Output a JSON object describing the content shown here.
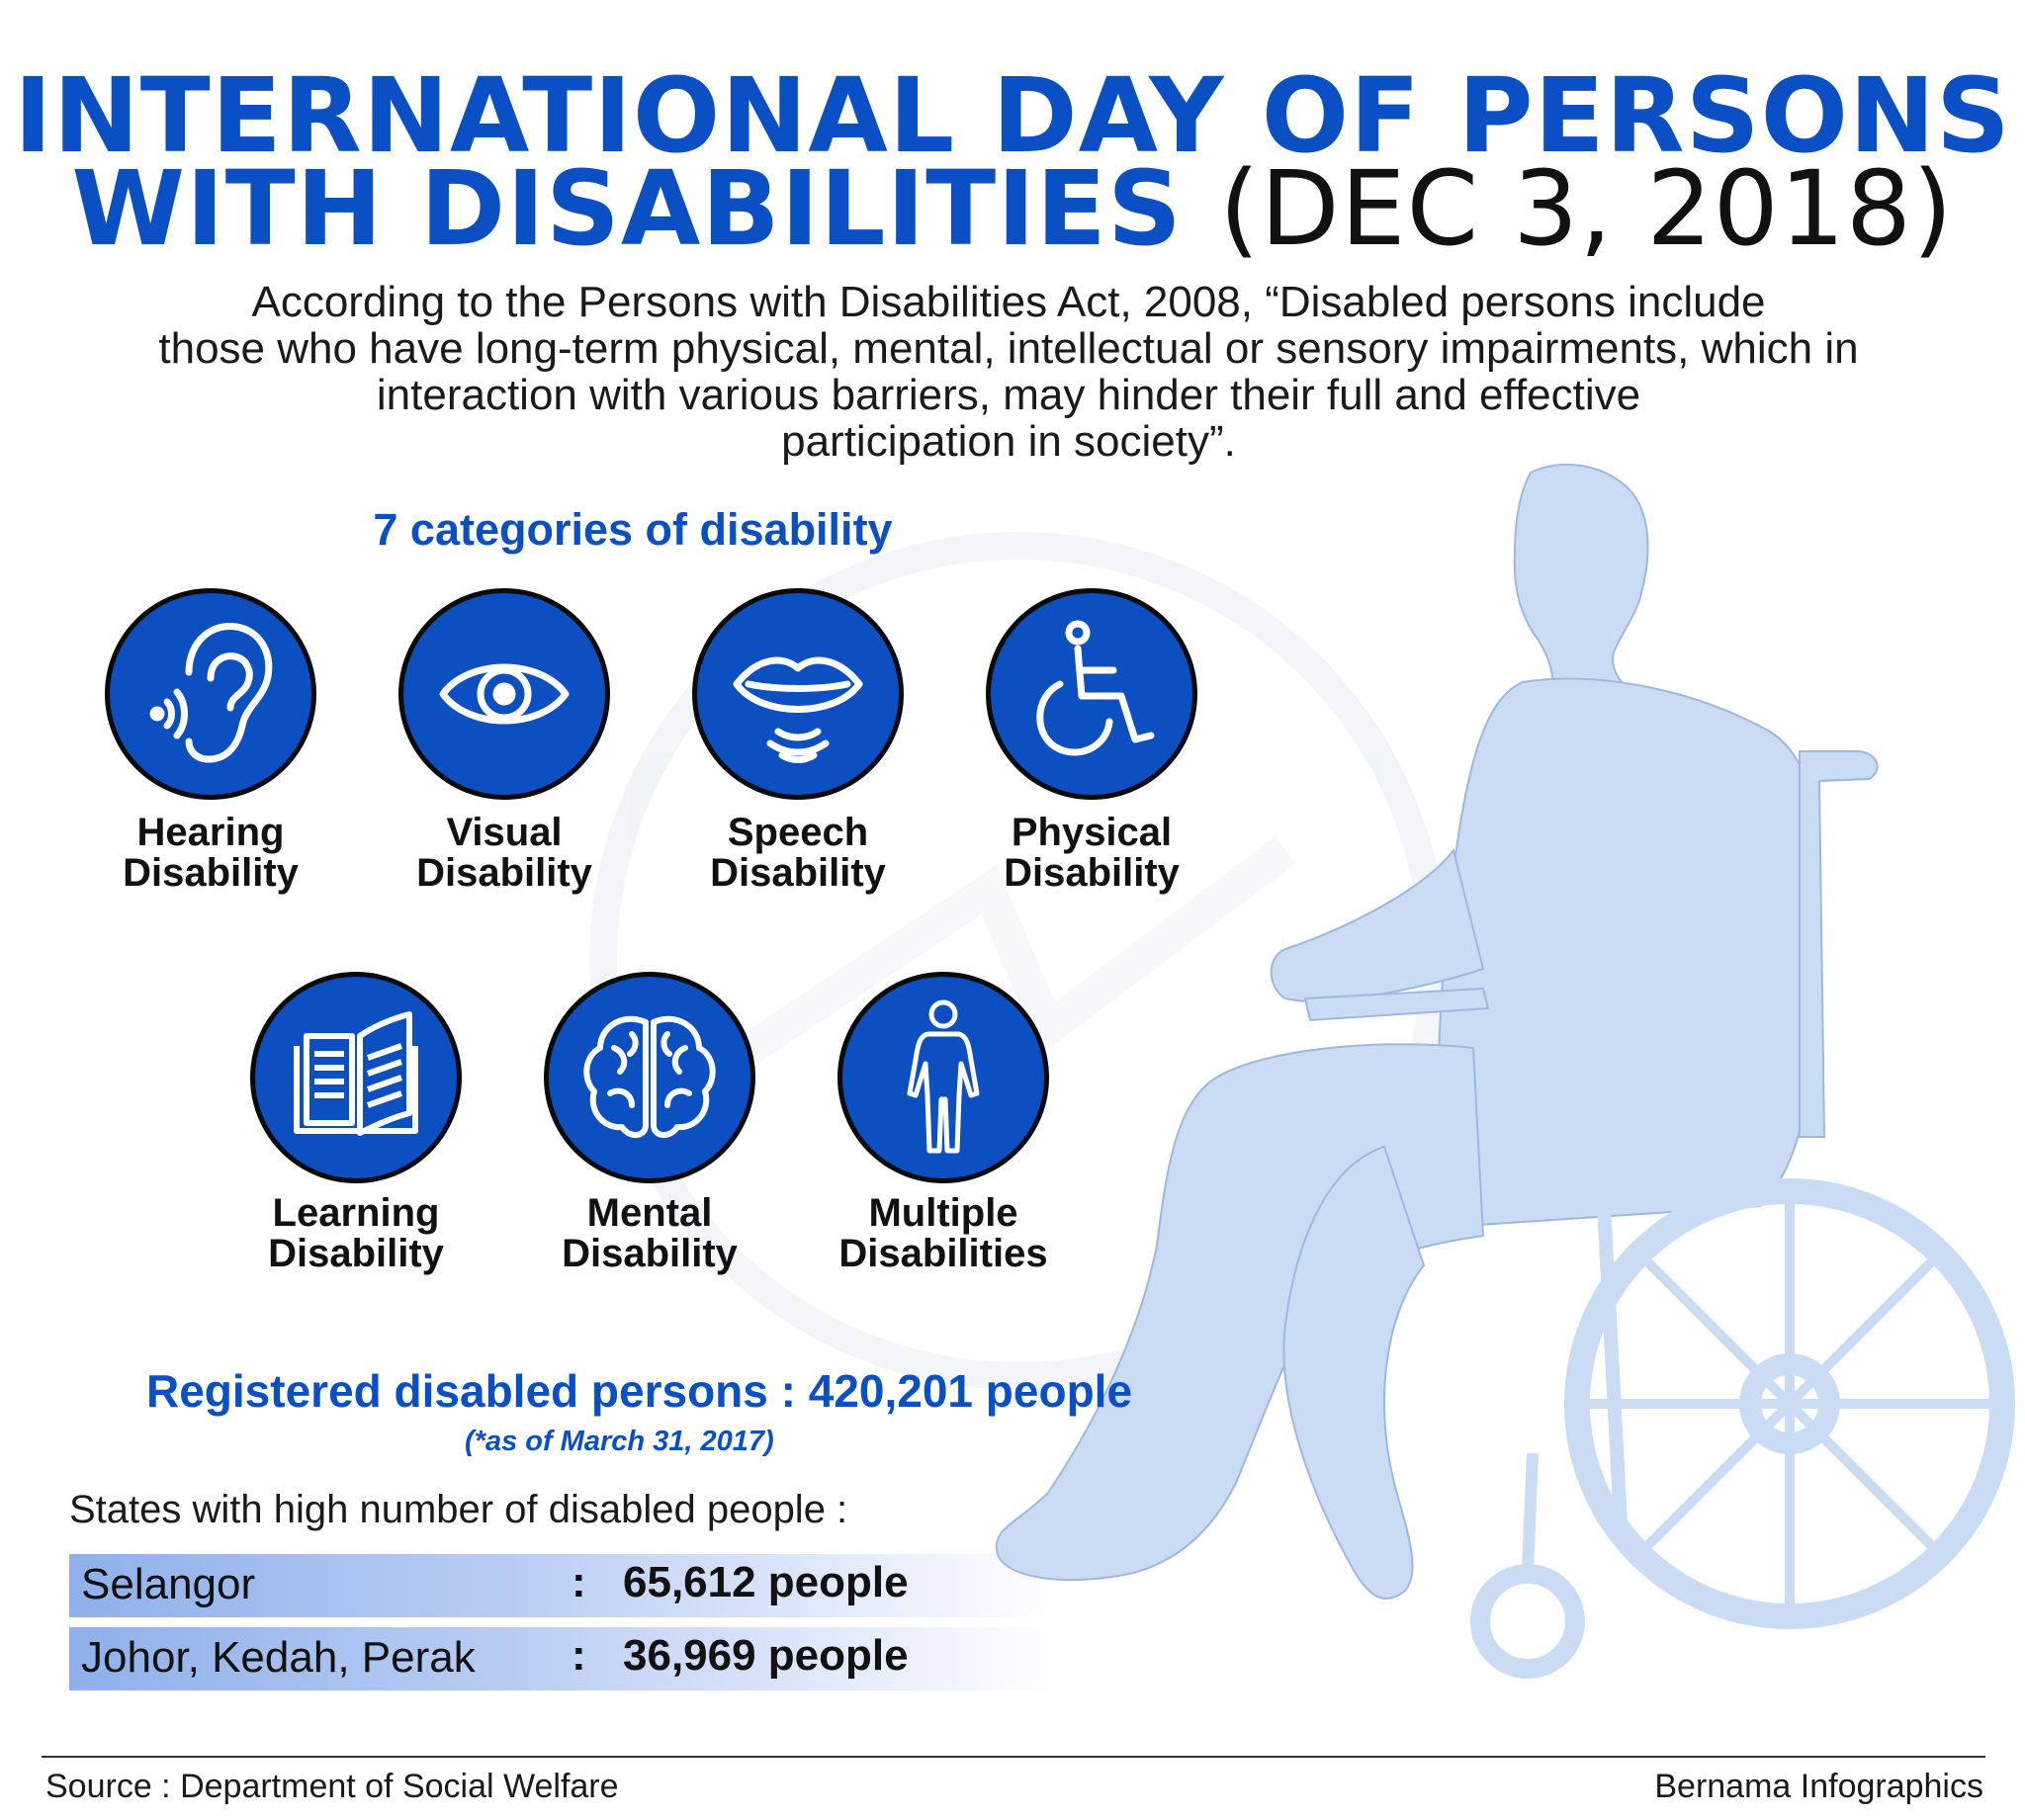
{
  "title": {
    "line1": "INTERNATIONAL DAY OF PERSONS",
    "line2_blue": "WITH DISABILITIES",
    "line2_date": "(DEC 3, 2018)"
  },
  "intro": {
    "line1": "According to the Persons with Disabilities Act, 2008, “Disabled persons include",
    "line2": "those who have long-term physical, mental, intellectual or sensory impairments, which in",
    "line3": "interaction with various barriers, may hinder their full and effective",
    "line4": "participation in society”."
  },
  "categories_heading": "7 categories of disability",
  "categories": [
    {
      "line1": "Hearing",
      "line2": "Disability",
      "icon": "ear-icon"
    },
    {
      "line1": "Visual",
      "line2": "Disability",
      "icon": "eye-icon"
    },
    {
      "line1": "Speech",
      "line2": "Disability",
      "icon": "lips-icon"
    },
    {
      "line1": "Physical",
      "line2": "Disability",
      "icon": "wheelchair-icon"
    },
    {
      "line1": "Learning",
      "line2": "Disability",
      "icon": "book-icon"
    },
    {
      "line1": "Mental",
      "line2": "Disability",
      "icon": "brain-icon"
    },
    {
      "line1": "Multiple",
      "line2": "Disabilities",
      "icon": "human-body-icon"
    }
  ],
  "registered": {
    "text": "Registered disabled persons : 420,201 people",
    "as_of": "(*as of March 31, 2017)"
  },
  "states_heading": "States with high number of disabled people :",
  "states": [
    {
      "name": "Selangor",
      "separator": ":",
      "value": "65,612 people"
    },
    {
      "name": "Johor, Kedah, Perak",
      "separator": ":",
      "value": "36,969 people"
    }
  ],
  "footer": {
    "source": "Source : Department of Social Welfare",
    "credit": "Bernama Infographics"
  },
  "colors": {
    "accent_blue": "#0a4fc4",
    "icon_circle": "#0c4fc0",
    "silhouette": "#c9dcf3"
  }
}
